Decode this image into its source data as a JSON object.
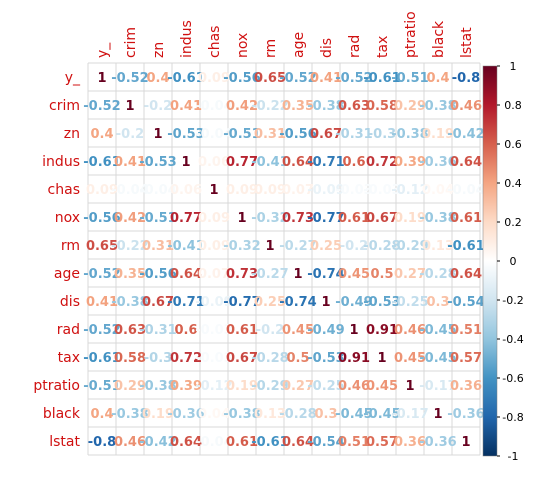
{
  "chart_data": {
    "type": "heatmap",
    "title": "",
    "variables": [
      "y_",
      "crim",
      "zn",
      "indus",
      "chas",
      "nox",
      "rm",
      "age",
      "dis",
      "rad",
      "tax",
      "ptratio",
      "black",
      "lstat"
    ],
    "cells": [
      [
        "1",
        "-0.52",
        "0.4",
        "-0.61",
        "0.09",
        "-0.56",
        "0.65",
        "-0.52",
        "0.41",
        "-0.52",
        "-0.61",
        "-0.51",
        "0.4",
        "-0.8"
      ],
      [
        "-0.52",
        "1",
        "-0.2",
        "0.41",
        "-0.04",
        "0.42",
        "-0.22",
        "0.35",
        "-0.38",
        "0.63",
        "0.58",
        "0.29",
        "-0.38",
        "0.46"
      ],
      [
        "0.4",
        "-0.2",
        "1",
        "-0.53",
        "-0.04",
        "-0.51",
        "0.31",
        "-0.56",
        "0.67",
        "-0.31",
        "-0.3",
        "-0.38",
        "0.19",
        "-0.42"
      ],
      [
        "-0.61",
        "0.41",
        "-0.53",
        "1",
        "0.06",
        "0.77",
        "-0.41",
        "0.64",
        "-0.71",
        "0.6",
        "0.72",
        "0.39",
        "-0.36",
        "0.64"
      ],
      [
        "0.09",
        "-0.04",
        "-0.04",
        "0.06",
        "1",
        "0.09",
        "0.09",
        "0.07",
        "-0.09",
        "-0.03",
        "-0.03",
        "-0.12",
        "0.04",
        "-0.04"
      ],
      [
        "-0.56",
        "0.42",
        "-0.51",
        "0.77",
        "0.09",
        "1",
        "-0.32",
        "0.73",
        "-0.77",
        "0.61",
        "0.67",
        "0.19",
        "-0.38",
        "0.61"
      ],
      [
        "0.65",
        "-0.22",
        "0.31",
        "-0.41",
        "0.09",
        "-0.32",
        "1",
        "-0.27",
        "0.25",
        "-0.2",
        "-0.28",
        "-0.29",
        "0.13",
        "-0.61"
      ],
      [
        "-0.52",
        "0.35",
        "-0.56",
        "0.64",
        "0.07",
        "0.73",
        "-0.27",
        "1",
        "-0.74",
        "0.45",
        "0.5",
        "0.27",
        "-0.28",
        "0.64"
      ],
      [
        "0.41",
        "-0.38",
        "0.67",
        "-0.71",
        "-0.09",
        "-0.77",
        "0.25",
        "-0.74",
        "1",
        "-0.49",
        "-0.53",
        "-0.25",
        "0.3",
        "-0.54"
      ],
      [
        "-0.52",
        "0.63",
        "-0.31",
        "0.6",
        "-0.03",
        "0.61",
        "-0.2",
        "0.45",
        "-0.49",
        "1",
        "0.91",
        "0.46",
        "-0.45",
        "0.51"
      ],
      [
        "-0.61",
        "0.58",
        "-0.3",
        "0.72",
        "-0.03",
        "0.67",
        "-0.28",
        "0.5",
        "-0.53",
        "0.91",
        "1",
        "0.45",
        "-0.45",
        "0.57"
      ],
      [
        "-0.51",
        "0.29",
        "-0.38",
        "0.39",
        "-0.12",
        "0.19",
        "-0.29",
        "0.27",
        "-0.25",
        "0.46",
        "0.45",
        "1",
        "-0.17",
        "0.36"
      ],
      [
        "0.4",
        "-0.38",
        "0.19",
        "-0.36",
        "0.04",
        "-0.38",
        "0.13",
        "-0.28",
        "0.3",
        "-0.45",
        "-0.45",
        "-0.17",
        "1",
        "-0.36"
      ],
      [
        "-0.8",
        "0.46",
        "-0.42",
        "0.64",
        "-0.04",
        "0.61",
        "-0.61",
        "0.64",
        "-0.54",
        "0.51",
        "0.57",
        "0.36",
        "-0.36",
        "1"
      ]
    ],
    "color_scale": {
      "range": [
        -1,
        1
      ],
      "ticks": [
        "1",
        "0.8",
        "0.6",
        "0.4",
        "0.2",
        "0",
        "-0.2",
        "-0.4",
        "-0.6",
        "-0.8",
        "-1"
      ],
      "colors": [
        "#67001f",
        "#b2182b",
        "#d6604d",
        "#f4a582",
        "#fddbc7",
        "#ffffff",
        "#d1e5f0",
        "#92c5de",
        "#4393c3",
        "#2166ac",
        "#053061"
      ]
    },
    "label_color": "#d01010",
    "grid_color": "#d9d9d9",
    "legend": "right"
  }
}
